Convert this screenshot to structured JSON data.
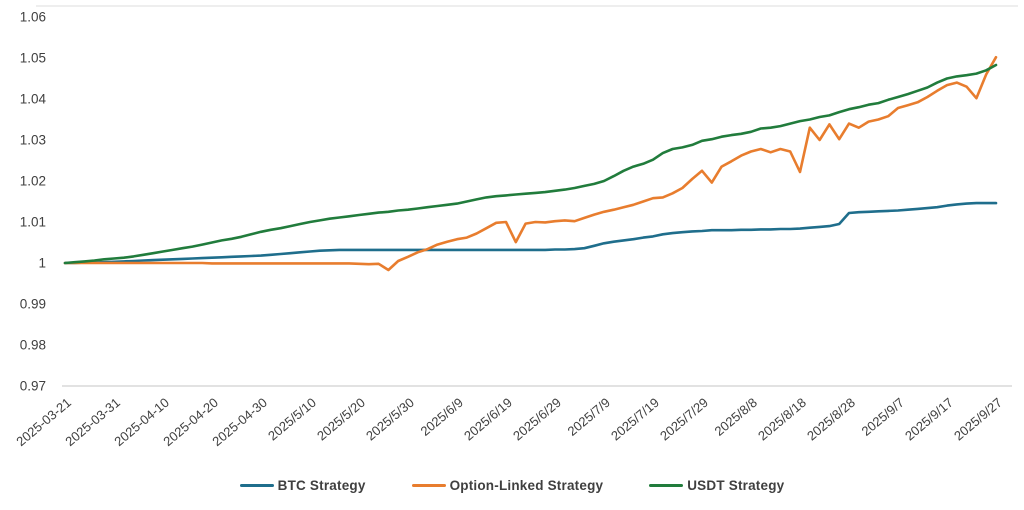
{
  "colors": {
    "background": "#ffffff",
    "axis_line": "#d9d9d9",
    "top_border": "#e4e4e4",
    "tick_text": "#3f3f3f",
    "legend_text": "#404040"
  },
  "chart_data": {
    "type": "line",
    "title": "",
    "xlabel": "",
    "ylabel": "",
    "ylim": [
      0.97,
      1.06
    ],
    "x_range_days": [
      0,
      190
    ],
    "x_start_date": "2025-03-21",
    "grid": "off",
    "legend_position": "bottom-center",
    "y_tick_values": [
      1.06,
      1.05,
      1.04,
      1.03,
      1.02,
      1.01,
      1.0,
      0.99,
      0.98,
      0.97
    ],
    "y_tick_labels": [
      "1.06",
      "1.05",
      "1.04",
      "1.03",
      "1.02",
      "1.01",
      "1",
      "0.99",
      "0.98",
      "0.97"
    ],
    "x_tick_days": [
      0,
      10,
      20,
      30,
      40,
      50,
      60,
      70,
      80,
      90,
      100,
      110,
      120,
      130,
      140,
      150,
      160,
      170,
      180,
      190
    ],
    "x_tick_labels": [
      "2025-03-21",
      "2025-03-31",
      "2025-04-10",
      "2025-04-20",
      "2025-04-30",
      "2025/5/10",
      "2025/5/20",
      "2025/5/30",
      "2025/6/9",
      "2025/6/19",
      "2025/6/29",
      "2025/7/9",
      "2025/7/19",
      "2025/7/29",
      "2025/8/8",
      "2025/8/18",
      "2025/8/28",
      "2025/9/7",
      "2025/9/17",
      "2025/9/27"
    ],
    "x_days": [
      0,
      2,
      4,
      6,
      8,
      10,
      12,
      14,
      16,
      18,
      20,
      22,
      24,
      26,
      28,
      30,
      32,
      34,
      36,
      38,
      40,
      42,
      44,
      46,
      48,
      50,
      52,
      54,
      56,
      58,
      60,
      62,
      64,
      66,
      68,
      70,
      72,
      74,
      76,
      78,
      80,
      82,
      84,
      86,
      88,
      90,
      92,
      94,
      96,
      98,
      100,
      102,
      104,
      106,
      108,
      110,
      112,
      114,
      116,
      118,
      120,
      122,
      124,
      126,
      128,
      130,
      132,
      134,
      136,
      138,
      140,
      142,
      144,
      146,
      148,
      150,
      152,
      154,
      156,
      158,
      160,
      162,
      164,
      166,
      168,
      170,
      172,
      174,
      176,
      178,
      180,
      182,
      184,
      186,
      188,
      190
    ],
    "series": [
      {
        "name": "BTC Strategy",
        "color": "#1f6e8c",
        "final_value": 1.0146,
        "values": [
          1.0,
          1.0,
          1.0001,
          1.0001,
          1.0002,
          1.0003,
          1.0004,
          1.0005,
          1.0006,
          1.0007,
          1.0008,
          1.0009,
          1.001,
          1.0011,
          1.0012,
          1.0013,
          1.0014,
          1.0015,
          1.0016,
          1.0017,
          1.0018,
          1.002,
          1.0022,
          1.0024,
          1.0026,
          1.0028,
          1.003,
          1.0031,
          1.0032,
          1.0032,
          1.0032,
          1.0032,
          1.0032,
          1.0032,
          1.0032,
          1.0032,
          1.0032,
          1.0032,
          1.0032,
          1.0032,
          1.0032,
          1.0032,
          1.0032,
          1.0032,
          1.0032,
          1.0032,
          1.0032,
          1.0032,
          1.0032,
          1.0032,
          1.0033,
          1.0033,
          1.0034,
          1.0036,
          1.0042,
          1.0048,
          1.0052,
          1.0055,
          1.0058,
          1.0062,
          1.0065,
          1.007,
          1.0073,
          1.0075,
          1.0077,
          1.0078,
          1.008,
          1.008,
          1.008,
          1.0081,
          1.0081,
          1.0082,
          1.0082,
          1.0083,
          1.0083,
          1.0084,
          1.0086,
          1.0088,
          1.009,
          1.0095,
          1.0122,
          1.0124,
          1.0125,
          1.0126,
          1.0127,
          1.0128,
          1.013,
          1.0132,
          1.0134,
          1.0136,
          1.014,
          1.0143,
          1.0145,
          1.0146,
          1.0146,
          1.0146
        ]
      },
      {
        "name": "Option-Linked Strategy",
        "color": "#e87d2e",
        "final_value": 1.0502,
        "values": [
          1.0,
          1.0,
          1.0,
          1.0,
          1.0,
          1.0,
          1.0,
          1.0,
          1.0,
          1.0,
          1.0,
          1.0,
          1.0,
          1.0,
          1.0,
          0.9999,
          0.9999,
          0.9999,
          0.9999,
          0.9999,
          0.9999,
          0.9999,
          0.9999,
          0.9999,
          0.9999,
          0.9999,
          0.9999,
          0.9999,
          0.9999,
          0.9999,
          0.9998,
          0.9997,
          0.9998,
          0.9983,
          1.0005,
          1.0015,
          1.0026,
          1.0034,
          1.0045,
          1.0052,
          1.0058,
          1.0062,
          1.0072,
          1.0085,
          1.0098,
          1.01,
          1.0051,
          1.0096,
          1.01,
          1.0099,
          1.0102,
          1.0104,
          1.0102,
          1.011,
          1.0118,
          1.0125,
          1.013,
          1.0136,
          1.0142,
          1.015,
          1.0158,
          1.016,
          1.017,
          1.0183,
          1.0205,
          1.0225,
          1.0196,
          1.0235,
          1.0248,
          1.0262,
          1.0272,
          1.0278,
          1.027,
          1.0278,
          1.0272,
          1.0222,
          1.033,
          1.03,
          1.0338,
          1.0302,
          1.034,
          1.033,
          1.0345,
          1.035,
          1.0358,
          1.0378,
          1.0385,
          1.0392,
          1.0405,
          1.042,
          1.0434,
          1.044,
          1.043,
          1.0402,
          1.046,
          1.0502
        ]
      },
      {
        "name": "USDT Strategy",
        "color": "#217c3c",
        "final_value": 1.0483,
        "values": [
          1.0,
          1.0002,
          1.0004,
          1.0006,
          1.0009,
          1.0011,
          1.0013,
          1.0016,
          1.002,
          1.0024,
          1.0028,
          1.0032,
          1.0036,
          1.004,
          1.0045,
          1.005,
          1.0055,
          1.0059,
          1.0064,
          1.007,
          1.0076,
          1.0081,
          1.0085,
          1.009,
          1.0095,
          1.01,
          1.0104,
          1.0108,
          1.0111,
          1.0114,
          1.0117,
          1.012,
          1.0123,
          1.0125,
          1.0128,
          1.013,
          1.0133,
          1.0136,
          1.0139,
          1.0142,
          1.0145,
          1.015,
          1.0155,
          1.016,
          1.0163,
          1.0165,
          1.0167,
          1.0169,
          1.0171,
          1.0173,
          1.0176,
          1.0179,
          1.0183,
          1.0188,
          1.0193,
          1.02,
          1.0212,
          1.0225,
          1.0235,
          1.0242,
          1.0252,
          1.0268,
          1.0278,
          1.0282,
          1.0288,
          1.0298,
          1.0302,
          1.0308,
          1.0312,
          1.0315,
          1.032,
          1.0328,
          1.033,
          1.0334,
          1.034,
          1.0346,
          1.035,
          1.0356,
          1.036,
          1.0368,
          1.0375,
          1.038,
          1.0386,
          1.039,
          1.0398,
          1.0405,
          1.0412,
          1.042,
          1.0428,
          1.044,
          1.045,
          1.0455,
          1.0458,
          1.0462,
          1.047,
          1.0483
        ]
      }
    ]
  }
}
